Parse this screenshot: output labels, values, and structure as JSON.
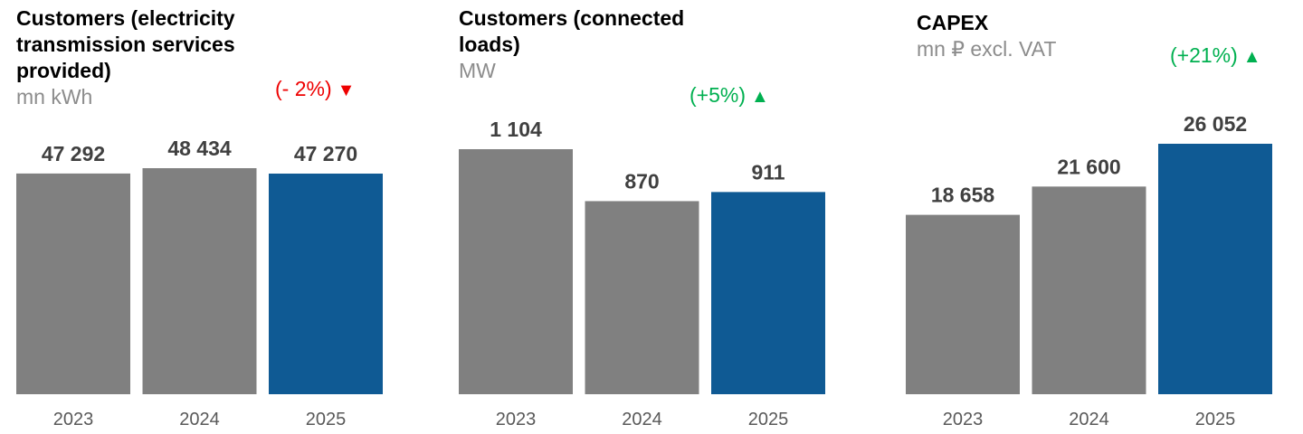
{
  "chart_data": [
    {
      "type": "bar",
      "title": "Customers (electricity transmission services provided)",
      "unit": "mn kWh",
      "categories": [
        "2023",
        "2024",
        "2025"
      ],
      "values": [
        47292,
        48434,
        47270
      ],
      "value_labels": [
        "47 292",
        "48 434",
        "47 270"
      ],
      "change": {
        "text": "(- 2%)",
        "direction": "down",
        "color": "#ee0000"
      },
      "bar_colors": [
        "#808080",
        "#808080",
        "#0f5a94"
      ]
    },
    {
      "type": "bar",
      "title": "Customers (connected loads)",
      "unit": "MW",
      "categories": [
        "2023",
        "2024",
        "2025"
      ],
      "values": [
        1104,
        870,
        911
      ],
      "value_labels": [
        "1 104",
        "870",
        "911"
      ],
      "change": {
        "text": "(+5%)",
        "direction": "up",
        "color": "#00b050"
      },
      "bar_colors": [
        "#808080",
        "#808080",
        "#0f5a94"
      ]
    },
    {
      "type": "bar",
      "title": "CAPEX",
      "unit": "mn ₽ excl. VAT",
      "categories": [
        "2023",
        "2024",
        "2025"
      ],
      "values": [
        18658,
        21600,
        26052
      ],
      "value_labels": [
        "18 658",
        "21 600",
        "26 052"
      ],
      "change": {
        "text": "(+21%)",
        "direction": "up",
        "color": "#00b050"
      },
      "bar_colors": [
        "#808080",
        "#808080",
        "#0f5a94"
      ]
    }
  ]
}
